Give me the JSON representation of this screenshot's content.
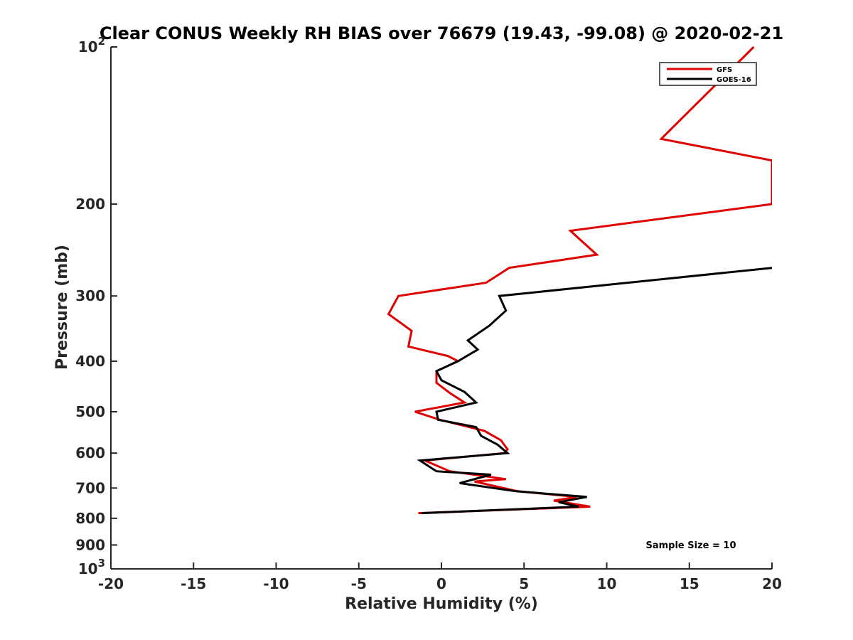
{
  "chart_data": {
    "type": "line",
    "title": "Clear CONUS Weekly RH BIAS over 76679 (19.43, -99.08) @ 2020-02-21",
    "xlabel": "Relative Humidity (%)",
    "ylabel": "Pressure (mb)",
    "xlim": [
      -20,
      20
    ],
    "ylim": [
      100,
      1000
    ],
    "y_scale": "log",
    "y_reversed": true,
    "grid": false,
    "legend_position": "top-right",
    "x_ticks": [
      "-20",
      "-15",
      "-10",
      "-5",
      "0",
      "5",
      "10",
      "15",
      "20"
    ],
    "y_ticks": [
      {
        "value": 100,
        "base": "10",
        "exp": "2"
      },
      {
        "value": 200,
        "label": "200"
      },
      {
        "value": 300,
        "label": "300"
      },
      {
        "value": 400,
        "label": "400"
      },
      {
        "value": 500,
        "label": "500"
      },
      {
        "value": 600,
        "label": "600"
      },
      {
        "value": 700,
        "label": "700"
      },
      {
        "value": 800,
        "label": "800"
      },
      {
        "value": 900,
        "label": "900"
      },
      {
        "value": 1000,
        "base": "10",
        "exp": "3"
      }
    ],
    "series": [
      {
        "name": "GFS",
        "color": "#e00000",
        "points": [
          [
            18.9,
            100
          ],
          [
            13.3,
            150
          ],
          [
            20.0,
            165
          ],
          [
            20.0,
            200
          ],
          [
            7.8,
            225
          ],
          [
            9.4,
            250
          ],
          [
            4.1,
            265
          ],
          [
            2.7,
            283
          ],
          [
            -2.6,
            300
          ],
          [
            -3.2,
            325
          ],
          [
            -1.8,
            350
          ],
          [
            -2.0,
            375
          ],
          [
            0.4,
            391
          ],
          [
            1.0,
            400
          ],
          [
            -0.3,
            418
          ],
          [
            -0.3,
            440
          ],
          [
            0.5,
            460
          ],
          [
            1.4,
            480
          ],
          [
            -1.6,
            500
          ],
          [
            -0.1,
            518
          ],
          [
            2.6,
            544
          ],
          [
            3.6,
            567
          ],
          [
            4.0,
            590
          ],
          [
            3.8,
            600
          ],
          [
            -1.0,
            620
          ],
          [
            0.5,
            650
          ],
          [
            3.9,
            673
          ],
          [
            2.0,
            680
          ],
          [
            4.6,
            710
          ],
          [
            8.2,
            728
          ],
          [
            6.8,
            740
          ],
          [
            9.0,
            760
          ],
          [
            -1.4,
            782
          ]
        ]
      },
      {
        "name": "GOES-16",
        "color": "#000000",
        "points": [
          [
            20.0,
            265
          ],
          [
            3.5,
            300
          ],
          [
            3.9,
            320
          ],
          [
            2.9,
            342
          ],
          [
            1.6,
            365
          ],
          [
            2.2,
            380
          ],
          [
            1.0,
            400
          ],
          [
            -0.3,
            418
          ],
          [
            0.0,
            435
          ],
          [
            1.4,
            458
          ],
          [
            2.1,
            480
          ],
          [
            -0.3,
            500
          ],
          [
            -0.2,
            518
          ],
          [
            2.1,
            535
          ],
          [
            2.4,
            556
          ],
          [
            3.4,
            578
          ],
          [
            4.0,
            600
          ],
          [
            -1.3,
            620
          ],
          [
            -0.3,
            650
          ],
          [
            3.0,
            660
          ],
          [
            1.1,
            685
          ],
          [
            4.5,
            710
          ],
          [
            8.8,
            728
          ],
          [
            7.1,
            745
          ],
          [
            8.3,
            760
          ],
          [
            -1.2,
            782
          ]
        ]
      }
    ],
    "annotation": "Sample Size = 10"
  }
}
